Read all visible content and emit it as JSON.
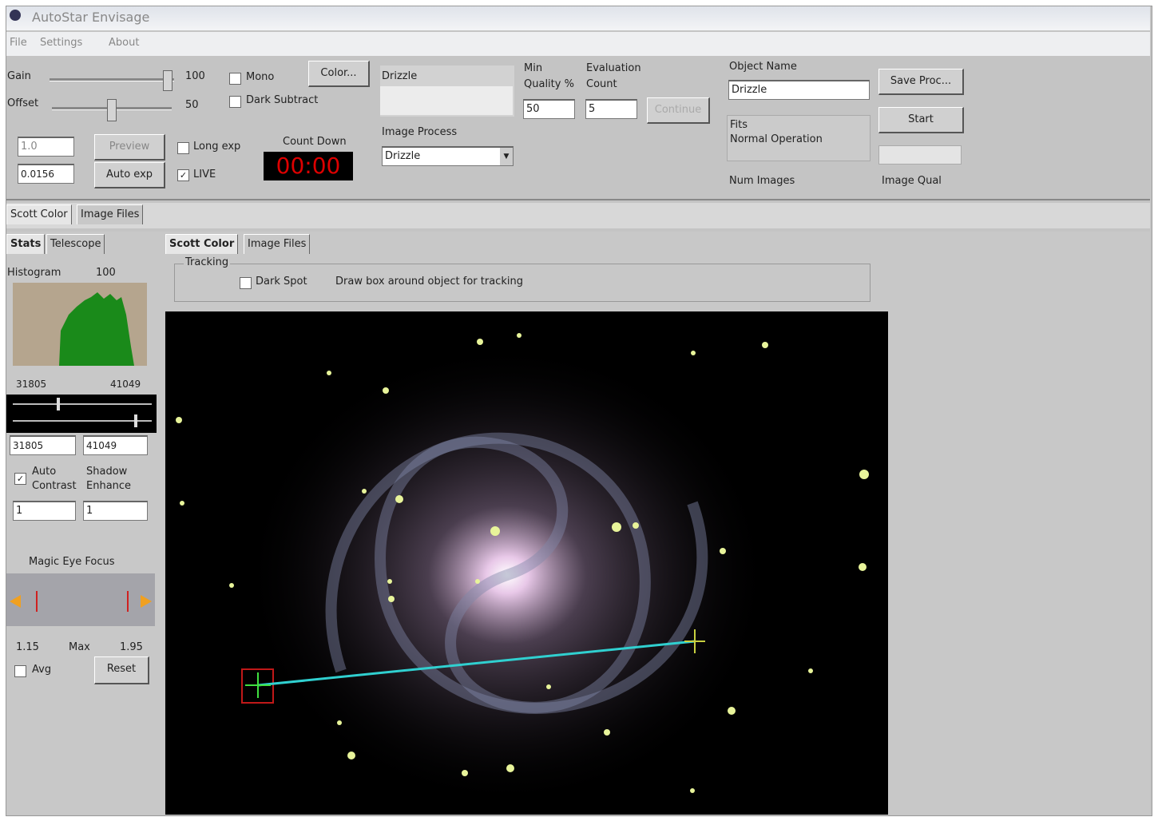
{
  "window": {
    "title": "AutoStar Envisage",
    "menu": [
      "File",
      "Settings",
      "About"
    ]
  },
  "toolbar": {
    "gain_label": "Gain",
    "gain_value": "100",
    "offset_label": "Offset",
    "offset_value": "50",
    "mono": "Mono",
    "dark_subtract": "Dark Subtract",
    "color_button": "Color...",
    "drizzle_label": "Drizzle",
    "image_process_label": "Image Process",
    "image_process_value": "Drizzle",
    "min_quality_label": "Min Quality %",
    "min_quality_value": "50",
    "evaluation_count_label": "Evaluation Count",
    "evaluation_count_value": "5",
    "continue_button": "Continue",
    "object_name_label": "Object Name",
    "object_name_value": "Drizzle",
    "save_button": "Save Proc...",
    "start_button": "Start",
    "status_format": "Fits",
    "status_mode": "Normal Operation",
    "num_images_label": "Num Images",
    "image_qual_label": "Image Qual",
    "exposure_value": "1.0",
    "preview_button": "Preview",
    "exposure_step": "0.0156",
    "auto_exp_button": "Auto exp",
    "long_exp": "Long exp",
    "live": "LIVE",
    "count_down_label": "Count Down",
    "count_down_value": "00:00"
  },
  "tabs": {
    "outer": [
      "Scott Color",
      "Image Files"
    ],
    "left": [
      "Stats",
      "Telescope"
    ],
    "inner": [
      "Scott Color",
      "Image Files"
    ]
  },
  "tracking": {
    "group": "Tracking",
    "dark_spot": "Dark Spot",
    "hint": "Draw box around object for tracking"
  },
  "stats": {
    "histogram_label": "Histogram",
    "histogram_max": "100",
    "range_low": "31805",
    "range_high": "41049",
    "low_input": "31805",
    "high_input": "41049",
    "auto_contrast": "Auto Contrast",
    "shadow_enhance": "Shadow Enhance",
    "contrast_input": "1",
    "shadow_input": "1",
    "magic_eye_focus": "Magic Eye Focus",
    "focus_min": "1.15",
    "focus_max_label": "Max",
    "focus_max": "1.95",
    "avg": "Avg",
    "reset_button": "Reset"
  }
}
